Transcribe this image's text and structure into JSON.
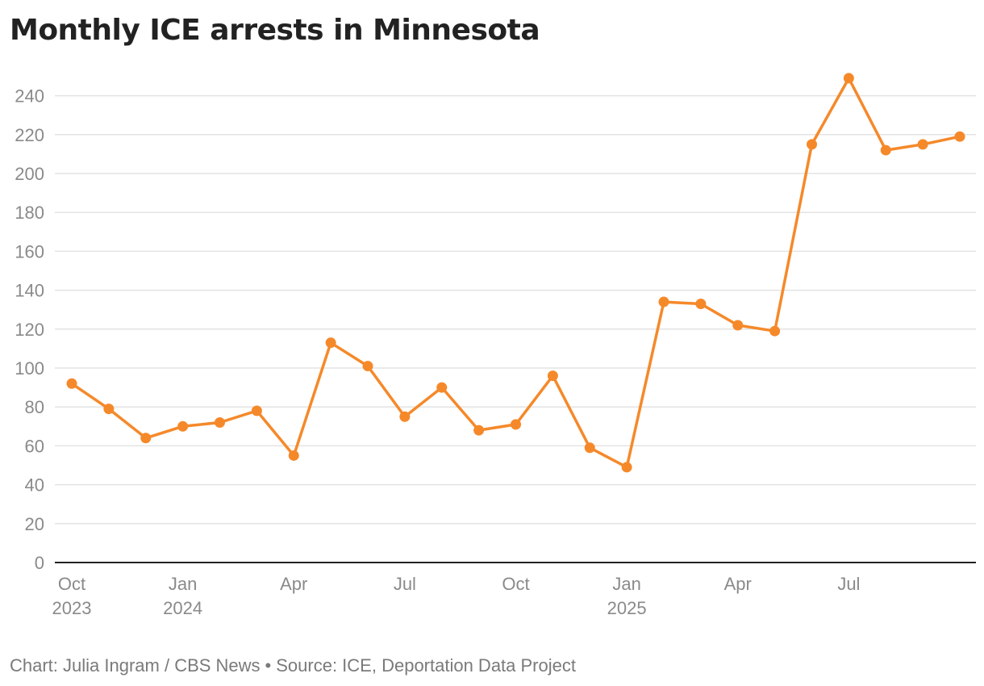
{
  "chart_data": {
    "type": "line",
    "title": "Monthly ICE arrests in Minnesota",
    "xlabel": "",
    "ylabel": "",
    "ylim": [
      0,
      250
    ],
    "y_ticks": [
      0,
      20,
      40,
      60,
      80,
      100,
      120,
      140,
      160,
      180,
      200,
      220,
      240
    ],
    "x_tick_labels": [
      {
        "index": 0,
        "month": "Oct",
        "year": "2023"
      },
      {
        "index": 3,
        "month": "Jan",
        "year": "2024"
      },
      {
        "index": 6,
        "month": "Apr",
        "year": ""
      },
      {
        "index": 9,
        "month": "Jul",
        "year": ""
      },
      {
        "index": 12,
        "month": "Oct",
        "year": ""
      },
      {
        "index": 15,
        "month": "Jan",
        "year": "2025"
      },
      {
        "index": 18,
        "month": "Apr",
        "year": ""
      },
      {
        "index": 21,
        "month": "Jul",
        "year": ""
      }
    ],
    "grid": true,
    "legend": "none",
    "color": "#f5892a",
    "series": [
      {
        "x": [
          "2023-10",
          "2023-11",
          "2023-12",
          "2024-01",
          "2024-02",
          "2024-03",
          "2024-04",
          "2024-05",
          "2024-06",
          "2024-07",
          "2024-08",
          "2024-09",
          "2024-10",
          "2024-11",
          "2024-12",
          "2025-01",
          "2025-02",
          "2025-03",
          "2025-04",
          "2025-05",
          "2025-06",
          "2025-07",
          "2025-08",
          "2025-09",
          "2025-10"
        ],
        "values": [
          92,
          79,
          64,
          70,
          72,
          78,
          55,
          113,
          101,
          75,
          90,
          68,
          71,
          96,
          59,
          49,
          134,
          133,
          122,
          119,
          215,
          249,
          212,
          215,
          219
        ]
      }
    ]
  },
  "footer": {
    "credit": "Chart: Julia Ingram / CBS News",
    "separator": "•",
    "source": "Source: ICE, Deportation Data Project"
  }
}
